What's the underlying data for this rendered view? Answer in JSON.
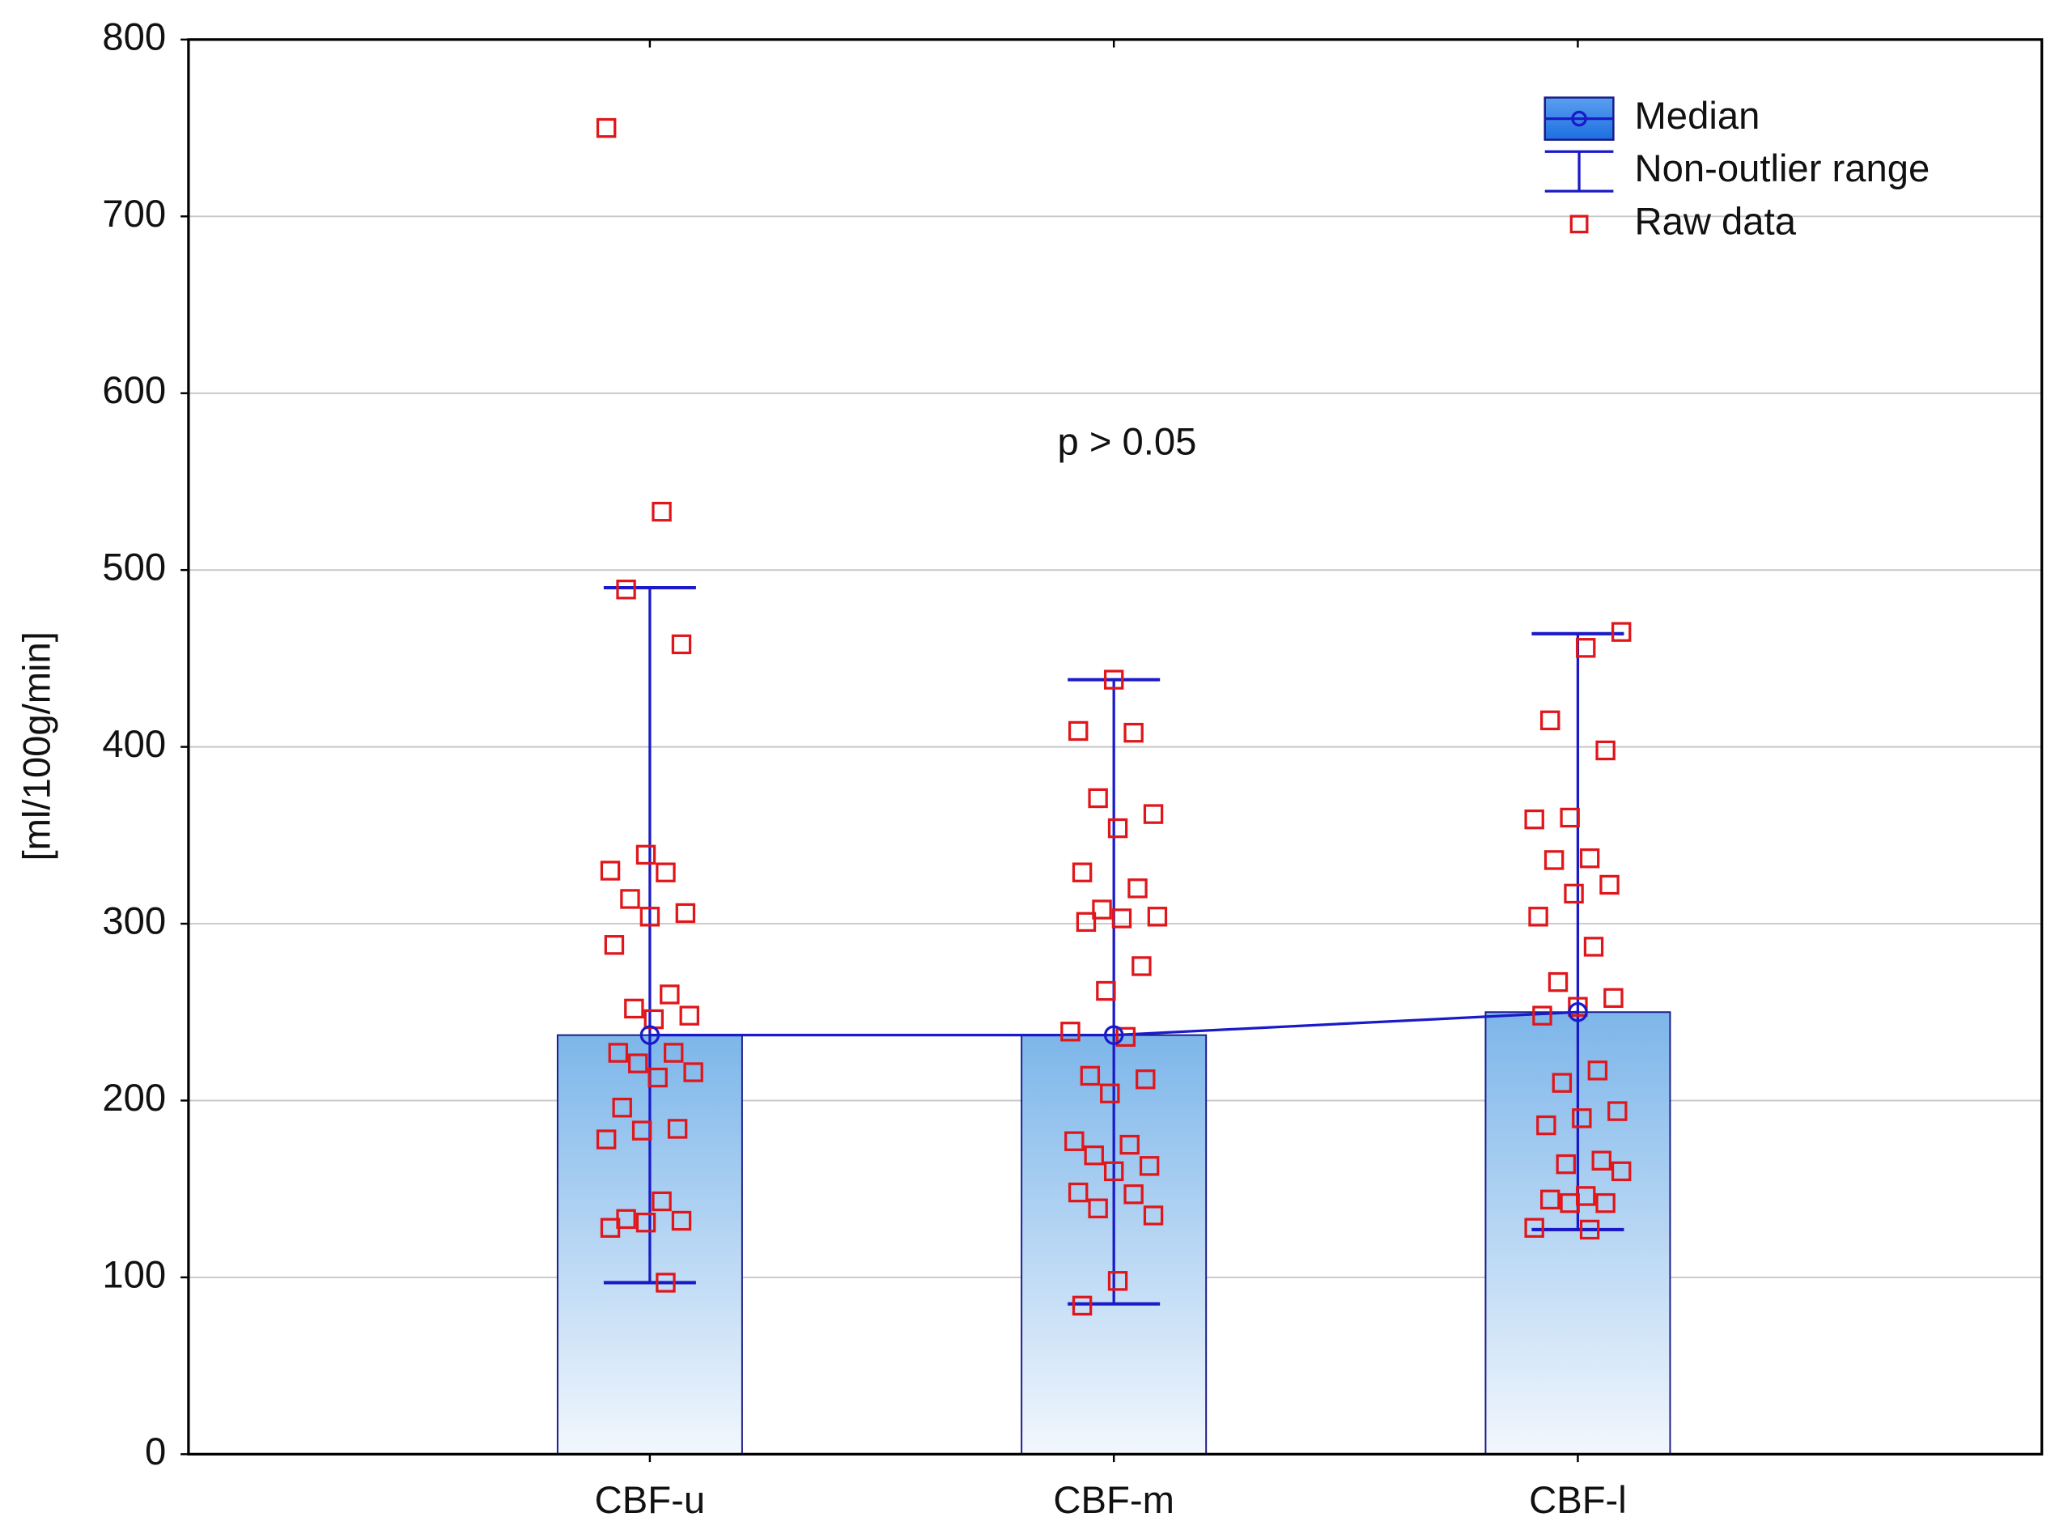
{
  "chart_data": {
    "type": "bar",
    "ylabel": "[ml/100g/min]",
    "annotation": "p > 0.05",
    "categories": [
      "CBF-u",
      "CBF-m",
      "CBF-l"
    ],
    "series": [
      {
        "name": "Median",
        "color": "#2f6fd8",
        "values": [
          237,
          237,
          250
        ]
      },
      {
        "name": "Non-outlier range",
        "color": "#1a1ac8",
        "low": [
          97,
          85,
          127
        ],
        "high": [
          490,
          438,
          464
        ]
      },
      {
        "name": "Raw data",
        "color": "#e0161b",
        "values": [
          [
            750,
            533,
            489,
            458,
            339,
            330,
            329,
            314,
            306,
            304,
            288,
            260,
            252,
            248,
            246,
            227,
            227,
            221,
            216,
            213,
            196,
            184,
            183,
            178,
            143,
            133,
            132,
            131,
            128,
            97
          ],
          [
            438,
            409,
            408,
            371,
            362,
            354,
            329,
            320,
            308,
            304,
            303,
            301,
            276,
            262,
            239,
            236,
            214,
            212,
            204,
            177,
            175,
            169,
            163,
            160,
            148,
            147,
            139,
            135,
            98,
            84
          ],
          [
            465,
            456,
            415,
            398,
            360,
            359,
            337,
            336,
            322,
            317,
            304,
            287,
            267,
            258,
            253,
            248,
            217,
            210,
            194,
            190,
            186,
            166,
            164,
            160,
            146,
            144,
            142,
            142,
            128,
            127
          ]
        ]
      }
    ],
    "ylim": [
      0,
      800
    ],
    "yticks": [
      0,
      100,
      200,
      300,
      400,
      500,
      600,
      700,
      800
    ],
    "grid": true,
    "legend": "upper right"
  }
}
